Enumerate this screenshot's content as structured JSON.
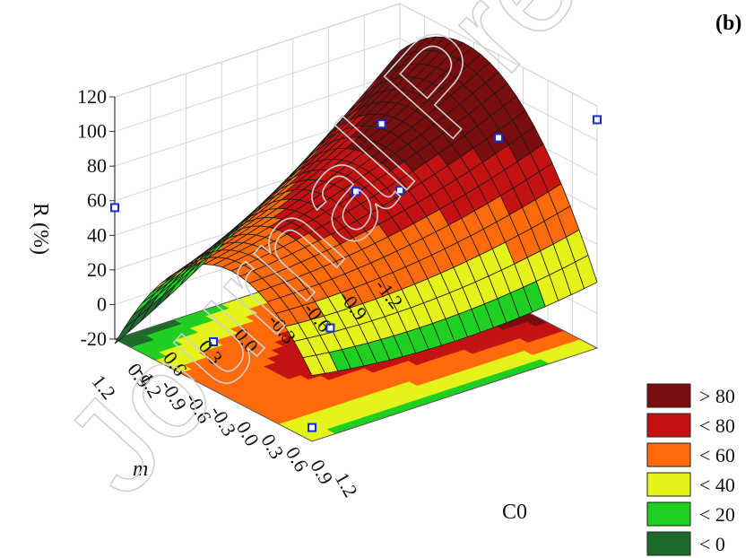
{
  "panel_label": "(b)",
  "watermark": "Journal Pre-proof",
  "chart_data": {
    "type": "surface3d",
    "title": "",
    "zlabel": "R (%)",
    "xlabel": "C0",
    "ylabel": "m",
    "z_ticks": [
      "120",
      "100",
      "80",
      "60",
      "40",
      "20",
      "0",
      "-20"
    ],
    "c0_ticks": [
      "1.2",
      "0.9",
      "0.6",
      "0.3",
      "0.0",
      "-0.3",
      "-0.6",
      "-0.9",
      "-1.2"
    ],
    "m_ticks": [
      "1.2",
      "0.9",
      "0.6",
      "0.3",
      "0.0",
      "-0.3",
      "-0.6",
      "-0.9",
      "-1.2"
    ],
    "zlim": [
      -20,
      120
    ],
    "xlim": [
      -1.2,
      1.2
    ],
    "ylim": [
      -1.2,
      1.2
    ],
    "surface_corners": {
      "m_1.2_C0_1.2": 0,
      "m_1.2_C0_-1.2": 60,
      "m_-1.2_C0_1.2": 105,
      "m_-1.2_C0_-1.2": 5
    },
    "experimental_points": [
      {
        "C0": 1.2,
        "m": 1.2,
        "R": -12
      },
      {
        "C0": -1.2,
        "m": 1.2,
        "R": 56
      },
      {
        "C0": 1.2,
        "m": -1.2,
        "R": 112
      },
      {
        "C0": -1.2,
        "m": -1.2,
        "R": 12
      },
      {
        "C0": 0.0,
        "m": 0.0,
        "R": 68
      },
      {
        "C0": 0.7,
        "m": 0.7,
        "R": 22
      },
      {
        "C0": -0.7,
        "m": -0.7,
        "R": 74
      },
      {
        "C0": 0.0,
        "m": 1.2,
        "R": 8
      },
      {
        "C0": 0.0,
        "m": -1.2,
        "R": 72
      }
    ],
    "legend": [
      {
        "label": "> 80",
        "color": "#7a0d0d"
      },
      {
        "label": "< 80",
        "color": "#c41212"
      },
      {
        "label": "< 60",
        "color": "#ff6a0a"
      },
      {
        "label": "< 40",
        "color": "#e4f31a"
      },
      {
        "label": "< 20",
        "color": "#1fcf22"
      },
      {
        "label": "< 0",
        "color": "#1e6b2c"
      }
    ],
    "legend_position": "bottom-right",
    "grid": true
  }
}
